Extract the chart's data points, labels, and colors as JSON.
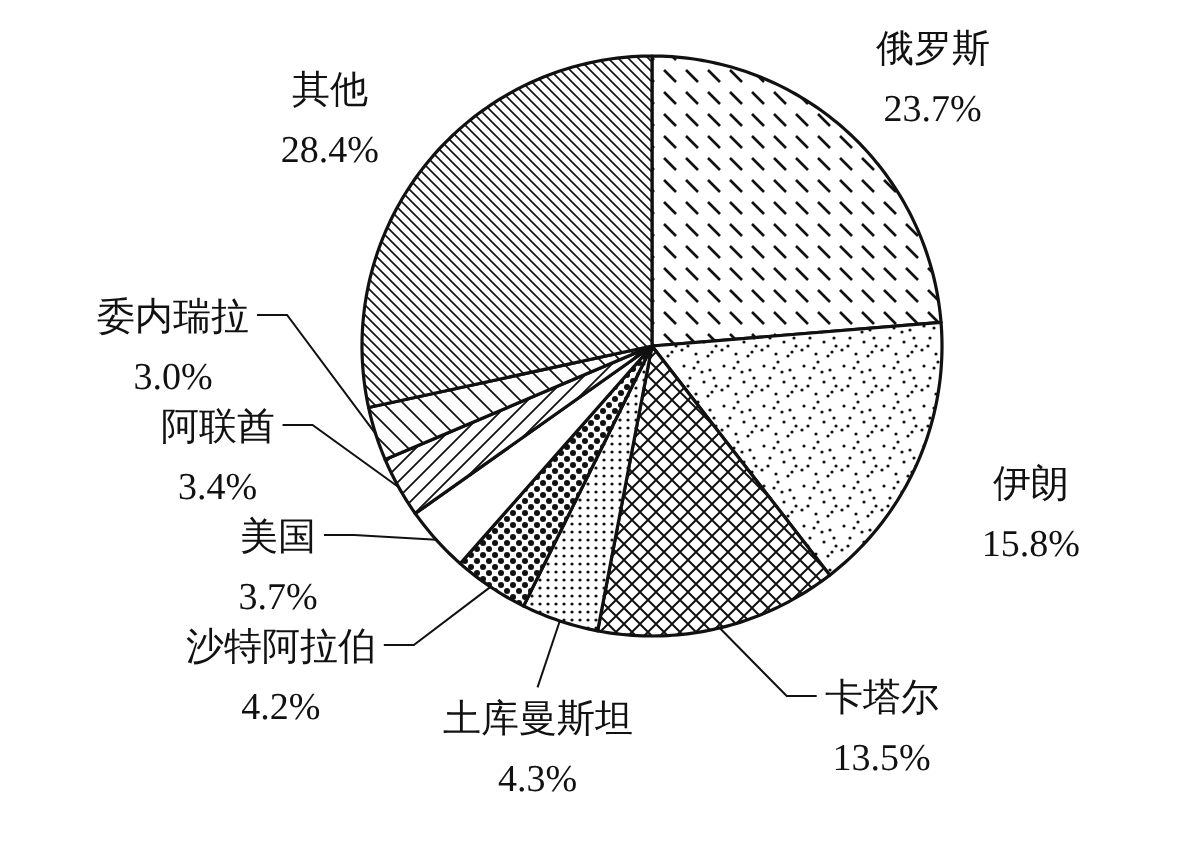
{
  "chart_data": {
    "type": "pie",
    "categories": [
      "俄罗斯",
      "伊朗",
      "卡塔尔",
      "土库曼斯坦",
      "沙特阿拉伯",
      "美国",
      "阿联酋",
      "委内瑞拉",
      "其他"
    ],
    "values": [
      23.7,
      15.8,
      13.5,
      4.3,
      4.2,
      3.7,
      3.4,
      3.0,
      28.4
    ],
    "colors": [
      "#111111",
      "#111111",
      "#111111",
      "#111111",
      "#111111",
      "#ffffff",
      "#111111",
      "#111111",
      "#111111"
    ],
    "value_labels": [
      "23.7%",
      "15.8%",
      "13.5%",
      "4.3%",
      "4.2%",
      "3.7%",
      "3.4%",
      "3.0%",
      "28.4%"
    ]
  }
}
